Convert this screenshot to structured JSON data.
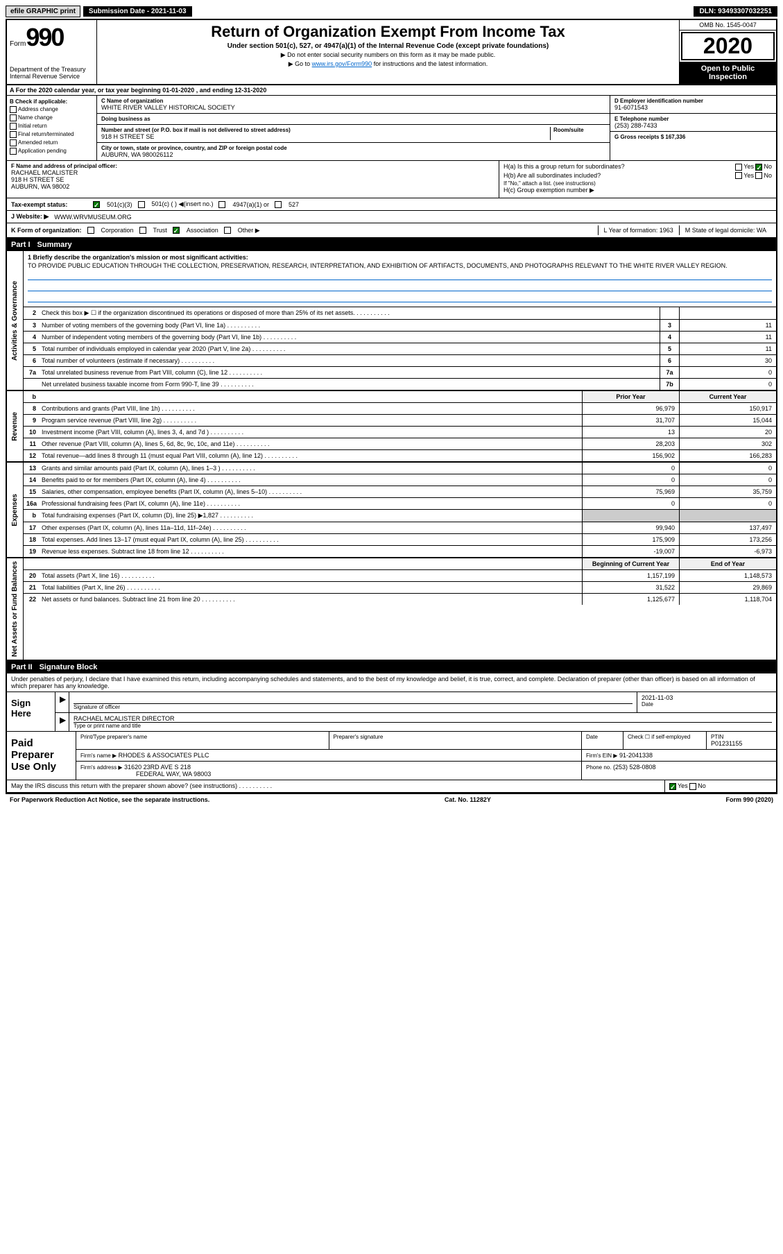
{
  "topbar": {
    "efile": "efile GRAPHIC print",
    "subdate_label": "Submission Date - 2021-11-03",
    "dln": "DLN: 93493307032251"
  },
  "header": {
    "form_word": "Form",
    "form_num": "990",
    "dept": "Department of the Treasury\nInternal Revenue Service",
    "title": "Return of Organization Exempt From Income Tax",
    "subtitle": "Under section 501(c), 527, or 4947(a)(1) of the Internal Revenue Code (except private foundations)",
    "instr1": "▶ Do not enter social security numbers on this form as it may be made public.",
    "instr2_pre": "▶ Go to ",
    "instr2_link": "www.irs.gov/Form990",
    "instr2_post": " for instructions and the latest information.",
    "omb": "OMB No. 1545-0047",
    "year": "2020",
    "inspection": "Open to Public Inspection"
  },
  "section_a": "A For the 2020 calendar year, or tax year beginning 01-01-2020   , and ending 12-31-2020",
  "col_b": {
    "header": "B Check if applicable:",
    "items": [
      "Address change",
      "Name change",
      "Initial return",
      "Final return/terminated",
      "Amended return",
      "Application pending"
    ]
  },
  "col_c": {
    "name_label": "C Name of organization",
    "name": "WHITE RIVER VALLEY HISTORICAL SOCIETY",
    "dba_label": "Doing business as",
    "addr_label": "Number and street (or P.O. box if mail is not delivered to street address)",
    "room_label": "Room/suite",
    "addr": "918 H STREET SE",
    "city_label": "City or town, state or province, country, and ZIP or foreign postal code",
    "city": "AUBURN, WA  980026112"
  },
  "col_right": {
    "d_label": "D Employer identification number",
    "d_val": "91-6071543",
    "e_label": "E Telephone number",
    "e_val": "(253) 288-7433",
    "g_label": "G Gross receipts $ 167,336"
  },
  "officer": {
    "f_label": "F Name and address of principal officer:",
    "name": "RACHAEL MCALISTER",
    "addr1": "918 H STREET SE",
    "addr2": "AUBURN, WA  98002",
    "ha": "H(a)  Is this a group return for subordinates?",
    "hb": "H(b)  Are all subordinates included?",
    "hb_note": "If \"No,\" attach a list. (see instructions)",
    "hc": "H(c)  Group exemption number ▶",
    "yes": "Yes",
    "no": "No"
  },
  "tax_status": {
    "label": "Tax-exempt status:",
    "opt1": "501(c)(3)",
    "opt2": "501(c) (  ) ◀(insert no.)",
    "opt3": "4947(a)(1) or",
    "opt4": "527"
  },
  "website": {
    "label": "J   Website: ▶",
    "val": "WWW.WRVMUSEUM.ORG"
  },
  "korg": {
    "label": "K Form of organization:",
    "opts": [
      "Corporation",
      "Trust",
      "Association",
      "Other ▶"
    ],
    "l_label": "L Year of formation: 1963",
    "m_label": "M State of legal domicile: WA"
  },
  "part1": {
    "num": "Part I",
    "title": "Summary"
  },
  "mission": {
    "label": "1  Briefly describe the organization's mission or most significant activities:",
    "text": "TO PROVIDE PUBLIC EDUCATION THROUGH THE COLLECTION, PRESERVATION, RESEARCH, INTERPRETATION, AND EXHIBITION OF ARTIFACTS, DOCUMENTS, AND PHOTOGRAPHS RELEVANT TO THE WHITE RIVER VALLEY REGION."
  },
  "governance": {
    "side": "Activities & Governance",
    "lines": [
      {
        "num": "2",
        "text": "Check this box ▶ ☐  if the organization discontinued its operations or disposed of more than 25% of its net assets.",
        "box": "",
        "val": ""
      },
      {
        "num": "3",
        "text": "Number of voting members of the governing body (Part VI, line 1a)",
        "box": "3",
        "val": "11"
      },
      {
        "num": "4",
        "text": "Number of independent voting members of the governing body (Part VI, line 1b)",
        "box": "4",
        "val": "11"
      },
      {
        "num": "5",
        "text": "Total number of individuals employed in calendar year 2020 (Part V, line 2a)",
        "box": "5",
        "val": "11"
      },
      {
        "num": "6",
        "text": "Total number of volunteers (estimate if necessary)",
        "box": "6",
        "val": "30"
      },
      {
        "num": "7a",
        "text": "Total unrelated business revenue from Part VIII, column (C), line 12",
        "box": "7a",
        "val": "0"
      },
      {
        "num": "",
        "text": "Net unrelated business taxable income from Form 990-T, line 39",
        "box": "7b",
        "val": "0"
      }
    ]
  },
  "revenue": {
    "side": "Revenue",
    "hdr_b": "b",
    "hdr_prior": "Prior Year",
    "hdr_current": "Current Year",
    "lines": [
      {
        "num": "8",
        "text": "Contributions and grants (Part VIII, line 1h)",
        "prior": "96,979",
        "current": "150,917"
      },
      {
        "num": "9",
        "text": "Program service revenue (Part VIII, line 2g)",
        "prior": "31,707",
        "current": "15,044"
      },
      {
        "num": "10",
        "text": "Investment income (Part VIII, column (A), lines 3, 4, and 7d )",
        "prior": "13",
        "current": "20"
      },
      {
        "num": "11",
        "text": "Other revenue (Part VIII, column (A), lines 5, 6d, 8c, 9c, 10c, and 11e)",
        "prior": "28,203",
        "current": "302"
      },
      {
        "num": "12",
        "text": "Total revenue—add lines 8 through 11 (must equal Part VIII, column (A), line 12)",
        "prior": "156,902",
        "current": "166,283"
      }
    ]
  },
  "expenses": {
    "side": "Expenses",
    "lines": [
      {
        "num": "13",
        "text": "Grants and similar amounts paid (Part IX, column (A), lines 1–3 )",
        "prior": "0",
        "current": "0"
      },
      {
        "num": "14",
        "text": "Benefits paid to or for members (Part IX, column (A), line 4)",
        "prior": "0",
        "current": "0"
      },
      {
        "num": "15",
        "text": "Salaries, other compensation, employee benefits (Part IX, column (A), lines 5–10)",
        "prior": "75,969",
        "current": "35,759"
      },
      {
        "num": "16a",
        "text": "Professional fundraising fees (Part IX, column (A), line 11e)",
        "prior": "0",
        "current": "0"
      },
      {
        "num": "b",
        "text": "Total fundraising expenses (Part IX, column (D), line 25) ▶1,827",
        "prior": "",
        "current": "",
        "shaded": true
      },
      {
        "num": "17",
        "text": "Other expenses (Part IX, column (A), lines 11a–11d, 11f–24e)",
        "prior": "99,940",
        "current": "137,497"
      },
      {
        "num": "18",
        "text": "Total expenses. Add lines 13–17 (must equal Part IX, column (A), line 25)",
        "prior": "175,909",
        "current": "173,256"
      },
      {
        "num": "19",
        "text": "Revenue less expenses. Subtract line 18 from line 12",
        "prior": "-19,007",
        "current": "-6,973"
      }
    ]
  },
  "netassets": {
    "side": "Net Assets or Fund Balances",
    "hdr_begin": "Beginning of Current Year",
    "hdr_end": "End of Year",
    "lines": [
      {
        "num": "20",
        "text": "Total assets (Part X, line 16)",
        "prior": "1,157,199",
        "current": "1,148,573"
      },
      {
        "num": "21",
        "text": "Total liabilities (Part X, line 26)",
        "prior": "31,522",
        "current": "29,869"
      },
      {
        "num": "22",
        "text": "Net assets or fund balances. Subtract line 21 from line 20",
        "prior": "1,125,677",
        "current": "1,118,704"
      }
    ]
  },
  "part2": {
    "num": "Part II",
    "title": "Signature Block"
  },
  "sig": {
    "declaration": "Under penalties of perjury, I declare that I have examined this return, including accompanying schedules and statements, and to the best of my knowledge and belief, it is true, correct, and complete. Declaration of preparer (other than officer) is based on all information of which preparer has any knowledge.",
    "sign_here": "Sign Here",
    "sig_officer": "Signature of officer",
    "date": "Date",
    "date_val": "2021-11-03",
    "name_title": "RACHAEL MCALISTER  DIRECTOR",
    "type_label": "Type or print name and title",
    "paid": "Paid Preparer Use Only",
    "prep_name_label": "Print/Type preparer's name",
    "prep_sig_label": "Preparer's signature",
    "date_label": "Date",
    "check_self": "Check ☐ if self-employed",
    "ptin_label": "PTIN",
    "ptin": "P01231155",
    "firm_name_label": "Firm's name    ▶",
    "firm_name": "RHODES & ASSOCIATES PLLC",
    "firm_ein_label": "Firm's EIN ▶",
    "firm_ein": "91-2041338",
    "firm_addr_label": "Firm's address ▶",
    "firm_addr1": "31620 23RD AVE S 218",
    "firm_addr2": "FEDERAL WAY, WA  98003",
    "phone_label": "Phone no.",
    "phone": "(253) 528-0808",
    "discuss": "May the IRS discuss this return with the preparer shown above? (see instructions)"
  },
  "footer": {
    "paperwork": "For Paperwork Reduction Act Notice, see the separate instructions.",
    "cat": "Cat. No. 11282Y",
    "form": "Form 990 (2020)"
  }
}
